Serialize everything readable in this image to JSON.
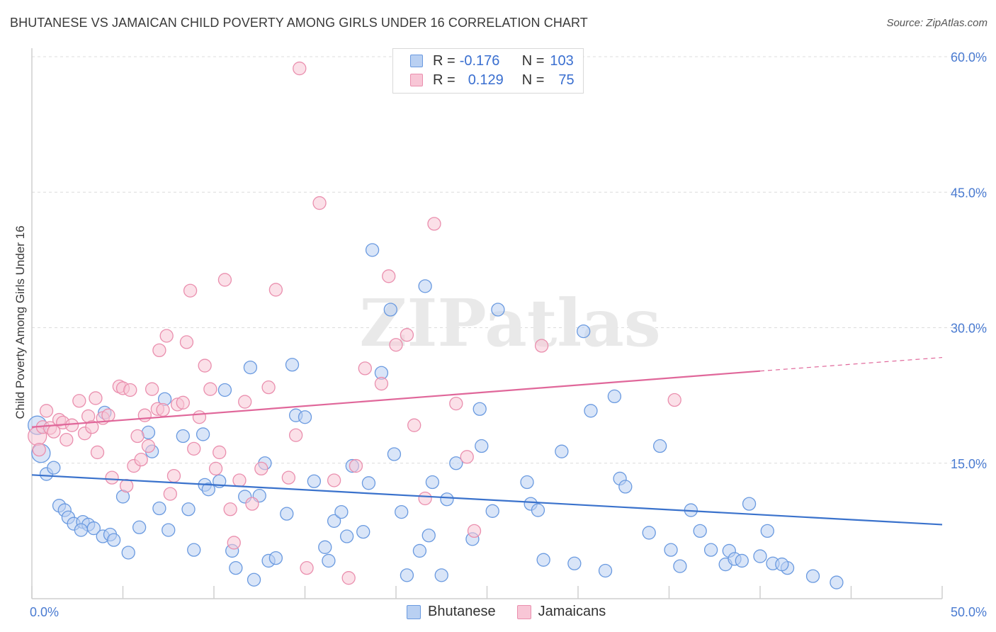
{
  "title": "BHUTANESE VS JAMAICAN CHILD POVERTY AMONG GIRLS UNDER 16 CORRELATION CHART",
  "source": "Source: ZipAtlas.com",
  "watermark": "ZIPatlas",
  "legend_top": {
    "rows": [
      {
        "r_label": "R =",
        "r_value": "-0.176",
        "n_label": "N =",
        "n_value": "103"
      },
      {
        "r_label": "R =",
        "r_value": "0.129",
        "n_label": "N =",
        "n_value": "75"
      }
    ]
  },
  "legend_bottom": [
    "Bhutanese",
    "Jamaicans"
  ],
  "colors": {
    "blue_fill": "#b9d0f2",
    "blue_stroke": "#6a9ae0",
    "blue_line": "#3a72cc",
    "pink_fill": "#f8c6d6",
    "pink_stroke": "#ea8fae",
    "pink_line": "#e0679a",
    "tick_text": "#4a7bd1",
    "grid": "#dcdcdc"
  },
  "chart_data": {
    "type": "scatter",
    "title": "BHUTANESE VS JAMAICAN CHILD POVERTY AMONG GIRLS UNDER 16 CORRELATION CHART",
    "xlabel": "",
    "ylabel": "Child Poverty Among Girls Under 16",
    "xlim": [
      0,
      50
    ],
    "ylim": [
      0,
      60
    ],
    "x_tick_labels": [
      {
        "value": 0,
        "label": "0.0%"
      },
      {
        "value": 50,
        "label": "50.0%"
      }
    ],
    "y_tick_labels": [
      {
        "value": 15,
        "label": "15.0%"
      },
      {
        "value": 30,
        "label": "30.0%"
      },
      {
        "value": 45,
        "label": "45.0%"
      },
      {
        "value": 60,
        "label": "60.0%"
      }
    ],
    "grid": "horizontal dashed",
    "legend_position": "top-center",
    "series": [
      {
        "name": "Bhutanese",
        "color": "#b9d0f2",
        "trend": {
          "x": [
            0,
            50
          ],
          "y": [
            13.7,
            8.2
          ]
        },
        "points": [
          [
            0.3,
            19.2
          ],
          [
            0.5,
            16.1
          ],
          [
            0.8,
            13.8
          ],
          [
            1.2,
            14.5
          ],
          [
            1.5,
            10.3
          ],
          [
            1.8,
            9.8
          ],
          [
            2.0,
            9.0
          ],
          [
            2.3,
            8.3
          ],
          [
            2.8,
            8.5
          ],
          [
            3.1,
            8.2
          ],
          [
            2.7,
            7.6
          ],
          [
            3.4,
            7.8
          ],
          [
            3.9,
            6.9
          ],
          [
            4.3,
            7.1
          ],
          [
            4.5,
            6.5
          ],
          [
            5.3,
            5.1
          ],
          [
            5.0,
            11.3
          ],
          [
            5.9,
            7.9
          ],
          [
            6.4,
            18.4
          ],
          [
            6.6,
            16.3
          ],
          [
            7.0,
            10.0
          ],
          [
            7.5,
            7.6
          ],
          [
            7.3,
            22.1
          ],
          [
            4.0,
            20.6
          ],
          [
            8.3,
            18.0
          ],
          [
            8.6,
            9.9
          ],
          [
            8.9,
            5.4
          ],
          [
            9.4,
            18.2
          ],
          [
            9.5,
            12.6
          ],
          [
            9.7,
            12.1
          ],
          [
            10.3,
            13.0
          ],
          [
            10.6,
            23.1
          ],
          [
            11.0,
            5.3
          ],
          [
            11.2,
            3.4
          ],
          [
            11.7,
            11.3
          ],
          [
            12.0,
            25.6
          ],
          [
            12.2,
            2.1
          ],
          [
            12.5,
            11.4
          ],
          [
            12.8,
            15.0
          ],
          [
            13.0,
            4.2
          ],
          [
            13.4,
            4.5
          ],
          [
            14.0,
            9.4
          ],
          [
            14.3,
            25.9
          ],
          [
            14.5,
            20.3
          ],
          [
            15.0,
            20.1
          ],
          [
            15.5,
            13.0
          ],
          [
            16.1,
            5.7
          ],
          [
            16.3,
            4.2
          ],
          [
            16.6,
            8.6
          ],
          [
            17.0,
            9.6
          ],
          [
            17.3,
            6.9
          ],
          [
            17.6,
            14.7
          ],
          [
            18.2,
            7.4
          ],
          [
            18.5,
            12.8
          ],
          [
            18.7,
            38.6
          ],
          [
            19.2,
            25.0
          ],
          [
            19.7,
            32.0
          ],
          [
            19.9,
            16.0
          ],
          [
            20.3,
            9.6
          ],
          [
            20.6,
            2.6
          ],
          [
            21.3,
            5.3
          ],
          [
            21.6,
            34.6
          ],
          [
            21.8,
            7.0
          ],
          [
            22.0,
            12.9
          ],
          [
            22.5,
            2.6
          ],
          [
            22.8,
            11.0
          ],
          [
            23.3,
            15.0
          ],
          [
            24.2,
            6.6
          ],
          [
            24.6,
            21.0
          ],
          [
            24.7,
            16.9
          ],
          [
            25.3,
            9.7
          ],
          [
            25.6,
            32.0
          ],
          [
            27.2,
            12.9
          ],
          [
            27.4,
            10.5
          ],
          [
            27.8,
            9.8
          ],
          [
            28.1,
            4.3
          ],
          [
            29.1,
            16.3
          ],
          [
            29.8,
            3.9
          ],
          [
            30.3,
            29.6
          ],
          [
            30.7,
            20.8
          ],
          [
            31.5,
            3.1
          ],
          [
            32.0,
            22.4
          ],
          [
            32.3,
            13.3
          ],
          [
            32.6,
            12.4
          ],
          [
            33.9,
            7.3
          ],
          [
            34.5,
            16.9
          ],
          [
            35.1,
            5.4
          ],
          [
            35.6,
            3.6
          ],
          [
            36.2,
            9.8
          ],
          [
            36.7,
            7.5
          ],
          [
            37.3,
            5.4
          ],
          [
            38.1,
            3.8
          ],
          [
            38.3,
            5.3
          ],
          [
            38.6,
            4.4
          ],
          [
            39.0,
            4.2
          ],
          [
            39.4,
            10.5
          ],
          [
            40.0,
            4.7
          ],
          [
            40.4,
            7.5
          ],
          [
            40.7,
            3.9
          ],
          [
            41.5,
            3.4
          ],
          [
            42.9,
            2.5
          ],
          [
            44.2,
            1.8
          ],
          [
            41.2,
            3.8
          ]
        ]
      },
      {
        "name": "Jamaicans",
        "color": "#f8c6d6",
        "trend": {
          "x": [
            0,
            40
          ],
          "y": [
            19.0,
            25.2
          ],
          "x_dashed": [
            40,
            50
          ],
          "y_dashed": [
            25.2,
            26.7
          ]
        },
        "points": [
          [
            0.3,
            18.0
          ],
          [
            0.4,
            16.5
          ],
          [
            0.6,
            19.0
          ],
          [
            0.8,
            20.8
          ],
          [
            1.0,
            18.9
          ],
          [
            1.2,
            18.5
          ],
          [
            1.5,
            19.8
          ],
          [
            1.7,
            19.5
          ],
          [
            1.9,
            17.6
          ],
          [
            2.2,
            19.2
          ],
          [
            2.6,
            21.9
          ],
          [
            2.9,
            18.3
          ],
          [
            3.1,
            20.2
          ],
          [
            3.3,
            19.0
          ],
          [
            3.5,
            22.2
          ],
          [
            3.6,
            16.2
          ],
          [
            3.9,
            20.0
          ],
          [
            4.2,
            20.3
          ],
          [
            4.4,
            13.4
          ],
          [
            4.8,
            23.5
          ],
          [
            5.0,
            23.3
          ],
          [
            5.2,
            12.5
          ],
          [
            5.4,
            23.1
          ],
          [
            5.6,
            14.7
          ],
          [
            5.8,
            18.0
          ],
          [
            6.0,
            15.4
          ],
          [
            6.2,
            20.3
          ],
          [
            6.4,
            16.9
          ],
          [
            6.6,
            23.2
          ],
          [
            6.9,
            21.0
          ],
          [
            7.0,
            27.5
          ],
          [
            7.2,
            20.9
          ],
          [
            7.4,
            29.1
          ],
          [
            7.6,
            11.6
          ],
          [
            7.8,
            13.6
          ],
          [
            8.0,
            21.5
          ],
          [
            8.3,
            21.7
          ],
          [
            8.5,
            28.4
          ],
          [
            8.7,
            34.1
          ],
          [
            8.9,
            16.6
          ],
          [
            9.2,
            20.1
          ],
          [
            9.5,
            25.8
          ],
          [
            9.8,
            23.2
          ],
          [
            10.1,
            14.4
          ],
          [
            10.3,
            16.2
          ],
          [
            10.6,
            35.3
          ],
          [
            10.9,
            9.9
          ],
          [
            11.1,
            6.2
          ],
          [
            11.4,
            13.1
          ],
          [
            11.7,
            21.8
          ],
          [
            12.1,
            10.5
          ],
          [
            12.6,
            14.4
          ],
          [
            13.0,
            23.4
          ],
          [
            13.4,
            34.2
          ],
          [
            14.1,
            13.4
          ],
          [
            14.5,
            18.1
          ],
          [
            15.1,
            3.4
          ],
          [
            14.7,
            58.7
          ],
          [
            15.8,
            43.8
          ],
          [
            16.6,
            13.1
          ],
          [
            17.4,
            2.3
          ],
          [
            17.8,
            14.7
          ],
          [
            18.3,
            25.5
          ],
          [
            19.2,
            23.8
          ],
          [
            19.6,
            35.7
          ],
          [
            20.0,
            28.1
          ],
          [
            20.6,
            29.2
          ],
          [
            21.0,
            19.2
          ],
          [
            21.6,
            11.1
          ],
          [
            22.1,
            41.5
          ],
          [
            23.3,
            21.6
          ],
          [
            23.9,
            15.7
          ],
          [
            24.3,
            7.5
          ],
          [
            28.0,
            28.0
          ],
          [
            35.3,
            22.0
          ]
        ]
      }
    ]
  }
}
